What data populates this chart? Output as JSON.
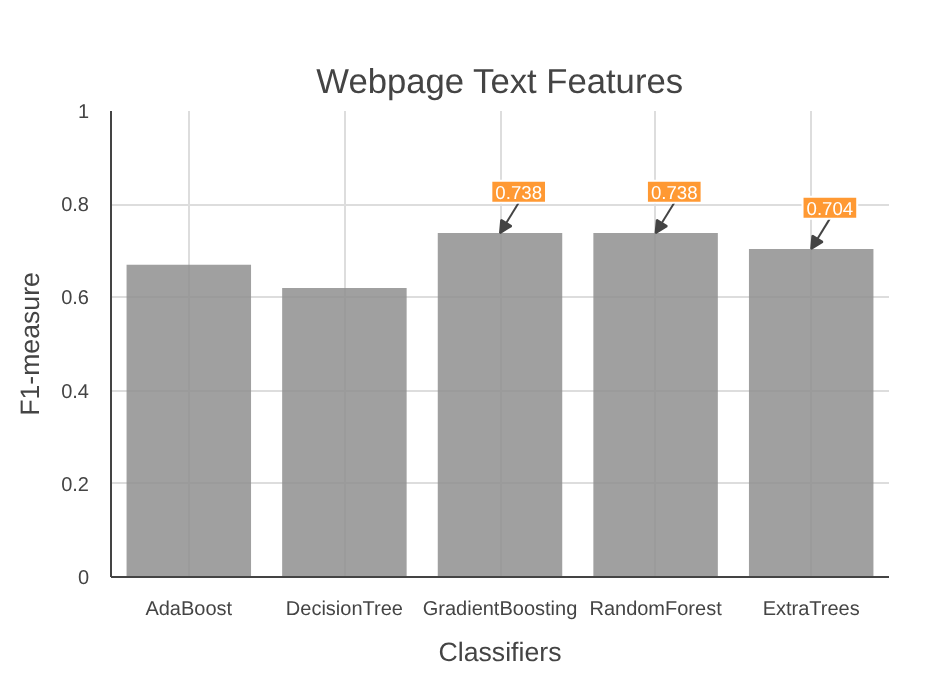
{
  "chart_data": {
    "type": "bar",
    "title": "Webpage Text Features",
    "xlabel": "Classifiers",
    "ylabel": "F1-measure",
    "categories": [
      "AdaBoost",
      "DecisionTree",
      "GradientBoosting",
      "RandomForest",
      "ExtraTrees"
    ],
    "values": [
      0.67,
      0.62,
      0.738,
      0.738,
      0.704
    ],
    "value_labels": [
      null,
      null,
      "0.738",
      "0.738",
      "0.704"
    ],
    "color": "#8f8f8f",
    "ylim": [
      0,
      1
    ],
    "yticks": [
      0,
      0.2,
      0.4,
      0.6,
      0.8,
      1
    ],
    "grid": true
  }
}
